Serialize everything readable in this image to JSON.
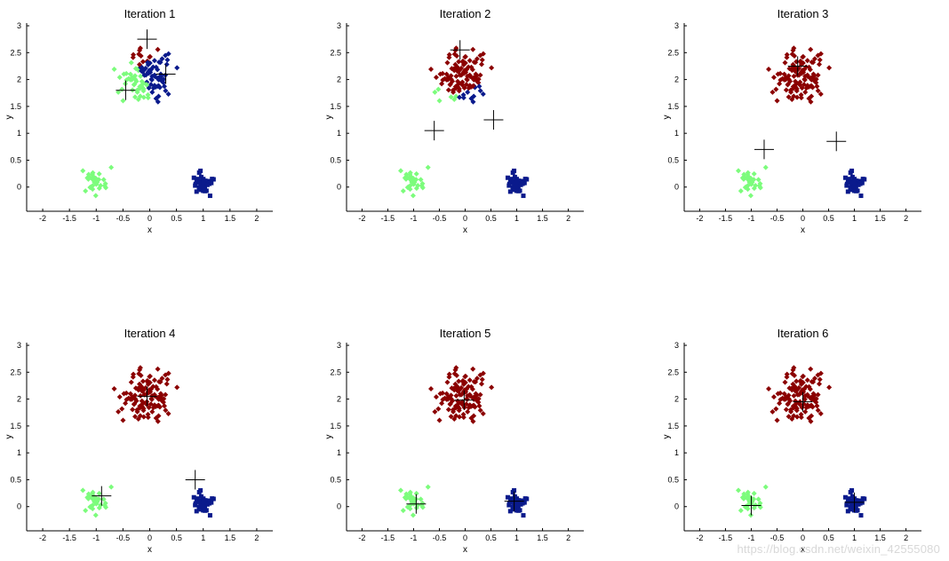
{
  "figure": {
    "watermark": "https://blog.csdn.net/weixin_42555080"
  },
  "colors": {
    "cluster_red": "#8b0000",
    "cluster_blue": "#0a1a8c",
    "cluster_green": "#7cfc7c",
    "axes": "#000000",
    "centroid": "#000000"
  },
  "chart_data": [
    {
      "type": "scatter",
      "title": "Iteration 1",
      "xlabel": "x",
      "ylabel": "y",
      "xlim": [
        -2.3,
        2.3
      ],
      "ylim": [
        -0.45,
        3.05
      ],
      "xticks": [
        "-2",
        "-1.5",
        "-1",
        "-0.5",
        "0",
        "0.5",
        "1",
        "1.5",
        "2"
      ],
      "yticks": [
        "0",
        "0.5",
        "1",
        "1.5",
        "2",
        "2.5",
        "3"
      ],
      "centroids": [
        [
          -0.05,
          2.75
        ],
        [
          0.3,
          2.1
        ],
        [
          -0.45,
          1.8
        ]
      ]
    },
    {
      "type": "scatter",
      "title": "Iteration 2",
      "xlabel": "x",
      "ylabel": "y",
      "xlim": [
        -2.3,
        2.3
      ],
      "ylim": [
        -0.45,
        3.05
      ],
      "xticks": [
        "-2",
        "-1.5",
        "-1",
        "-0.5",
        "0",
        "0.5",
        "1",
        "1.5",
        "2"
      ],
      "yticks": [
        "0",
        "0.5",
        "1",
        "1.5",
        "2",
        "2.5",
        "3"
      ],
      "centroids": [
        [
          -0.1,
          2.55
        ],
        [
          0.55,
          1.25
        ],
        [
          -0.6,
          1.05
        ]
      ]
    },
    {
      "type": "scatter",
      "title": "Iteration 3",
      "xlabel": "x",
      "ylabel": "y",
      "xlim": [
        -2.3,
        2.3
      ],
      "ylim": [
        -0.45,
        3.05
      ],
      "xticks": [
        "-2",
        "-1.5",
        "-1",
        "-0.5",
        "0",
        "0.5",
        "1",
        "1.5",
        "2"
      ],
      "yticks": [
        "0",
        "0.5",
        "1",
        "1.5",
        "2",
        "2.5",
        "3"
      ],
      "centroids": [
        [
          -0.1,
          2.25
        ],
        [
          0.65,
          0.85
        ],
        [
          -0.75,
          0.7
        ]
      ]
    },
    {
      "type": "scatter",
      "title": "Iteration 4",
      "xlabel": "x",
      "ylabel": "y",
      "xlim": [
        -2.3,
        2.3
      ],
      "ylim": [
        -0.45,
        3.05
      ],
      "xticks": [
        "-2",
        "-1.5",
        "-1",
        "-0.5",
        "0",
        "0.5",
        "1",
        "1.5",
        "2"
      ],
      "yticks": [
        "0",
        "0.5",
        "1",
        "1.5",
        "2",
        "2.5",
        "3"
      ],
      "centroids": [
        [
          -0.05,
          2.05
        ],
        [
          0.85,
          0.5
        ],
        [
          -0.9,
          0.2
        ]
      ]
    },
    {
      "type": "scatter",
      "title": "Iteration 5",
      "xlabel": "x",
      "ylabel": "y",
      "xlim": [
        -2.3,
        2.3
      ],
      "ylim": [
        -0.45,
        3.05
      ],
      "xticks": [
        "-2",
        "-1.5",
        "-1",
        "-0.5",
        "0",
        "0.5",
        "1",
        "1.5",
        "2"
      ],
      "yticks": [
        "0",
        "0.5",
        "1",
        "1.5",
        "2",
        "2.5",
        "3"
      ],
      "centroids": [
        [
          -0.02,
          1.98
        ],
        [
          0.95,
          0.1
        ],
        [
          -0.95,
          0.05
        ]
      ]
    },
    {
      "type": "scatter",
      "title": "Iteration 6",
      "xlabel": "x",
      "ylabel": "y",
      "xlim": [
        -2.3,
        2.3
      ],
      "ylim": [
        -0.45,
        3.05
      ],
      "xticks": [
        "-2",
        "-1.5",
        "-1",
        "-0.5",
        "0",
        "0.5",
        "1",
        "1.5",
        "2"
      ],
      "yticks": [
        "0",
        "0.5",
        "1",
        "1.5",
        "2",
        "2.5",
        "3"
      ],
      "centroids": [
        [
          0.0,
          1.95
        ],
        [
          1.0,
          0.08
        ],
        [
          -1.0,
          0.02
        ]
      ]
    }
  ]
}
